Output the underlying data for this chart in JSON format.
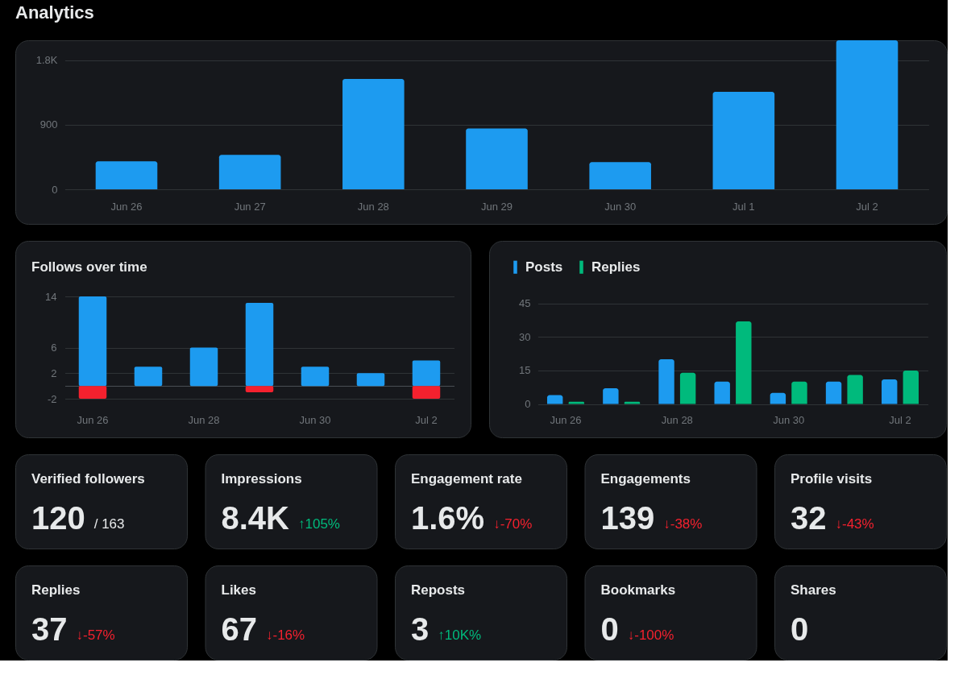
{
  "chart_data": [
    {
      "type": "bar",
      "title": "Analytics",
      "categories": [
        "Jun 26",
        "Jun 27",
        "Jun 28",
        "Jun 29",
        "Jun 30",
        "Jul 1",
        "Jul 2"
      ],
      "values": [
        390,
        480,
        1540,
        850,
        380,
        1360,
        2080
      ],
      "color": "#1d9bf0",
      "ylim": [
        0,
        2080
      ],
      "yticks": [
        0,
        900,
        {
          "value": 1800,
          "label": "1.8K"
        }
      ],
      "grid": "y"
    },
    {
      "type": "bar",
      "title": "Follows over time",
      "categories": [
        "Jun 26",
        null,
        "Jun 28",
        null,
        "Jun 30",
        null,
        "Jul 2"
      ],
      "stacked": true,
      "series": [
        {
          "color": "#1d9bf0",
          "values": [
            14,
            3,
            6,
            13,
            3,
            2,
            4
          ]
        },
        {
          "color": "#f4212e",
          "values": [
            -2,
            null,
            null,
            -1,
            null,
            null,
            -2
          ]
        }
      ],
      "ylim": [
        -2,
        14
      ],
      "yticks": [
        -2,
        {
          "value": 0,
          "label": null
        },
        2,
        6,
        14
      ],
      "grid": "y"
    },
    {
      "type": "bar",
      "categories": [
        "Jun 26",
        null,
        "Jun 28",
        null,
        "Jun 30",
        null,
        "Jul 2"
      ],
      "series": [
        {
          "name": "Posts",
          "color": "#1d9bf0",
          "values": [
            4,
            7,
            20,
            10,
            5,
            10,
            11
          ]
        },
        {
          "name": "Replies",
          "color": "#00ba7c",
          "values": [
            1,
            1,
            14,
            37,
            10,
            13,
            15
          ]
        }
      ],
      "ylim": [
        0,
        45
      ],
      "yticks": [
        0,
        15,
        30,
        45
      ],
      "grid": "y",
      "legend": "top left"
    },
    {
      "type": "other",
      "title": "Verified followers",
      "annotations": [
        "120",
        "/ 163"
      ],
      "colors": [
        "#e7e9ea",
        "#e7e9ea"
      ]
    },
    {
      "type": "other",
      "title": "Impressions",
      "annotations": [
        "8.4K",
        "↑105%"
      ],
      "colors": [
        "#e7e9ea",
        "#00ba7c"
      ]
    },
    {
      "type": "other",
      "title": "Engagement rate",
      "annotations": [
        "1.6%",
        "↓-70%"
      ],
      "colors": [
        "#e7e9ea",
        "#f4212e"
      ]
    },
    {
      "type": "other",
      "title": "Engagements",
      "annotations": [
        "139",
        "↓-38%"
      ],
      "colors": [
        "#e7e9ea",
        "#f4212e"
      ]
    },
    {
      "type": "other",
      "title": "Profile visits",
      "annotations": [
        "32",
        "↓-43%"
      ],
      "colors": [
        "#e7e9ea",
        "#f4212e"
      ]
    },
    {
      "type": "other",
      "title": "Replies",
      "annotations": [
        "37",
        "↓-57%"
      ],
      "colors": [
        "#e7e9ea",
        "#f4212e"
      ]
    },
    {
      "type": "other",
      "title": "Likes",
      "annotations": [
        "67",
        "↓-16%"
      ],
      "colors": [
        "#e7e9ea",
        "#f4212e"
      ]
    },
    {
      "type": "other",
      "title": "Reposts",
      "annotations": [
        "3",
        "↑10K%"
      ],
      "colors": [
        "#e7e9ea",
        "#00ba7c"
      ]
    },
    {
      "type": "other",
      "title": "Bookmarks",
      "annotations": [
        "0",
        "↓-100%"
      ],
      "colors": [
        "#e7e9ea",
        "#f4212e"
      ]
    },
    {
      "type": "other",
      "title": "Shares",
      "annotations": [
        "0"
      ],
      "colors": [
        "#e7e9ea"
      ]
    }
  ]
}
